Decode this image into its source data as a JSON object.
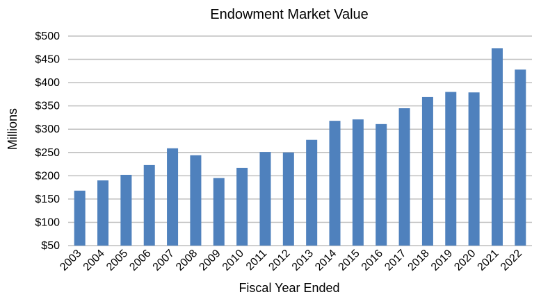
{
  "chart_data": {
    "type": "bar",
    "title": "Endowment Market Value",
    "xlabel": "Fiscal Year Ended",
    "ylabel": "Millions",
    "categories": [
      "2003",
      "2004",
      "2005",
      "2006",
      "2007",
      "2008",
      "2009",
      "2010",
      "2011",
      "2012",
      "2013",
      "2014",
      "2015",
      "2016",
      "2017",
      "2018",
      "2019",
      "2020",
      "2021",
      "2022"
    ],
    "values": [
      168,
      190,
      202,
      223,
      259,
      244,
      195,
      217,
      251,
      250,
      277,
      318,
      321,
      311,
      345,
      369,
      380,
      379,
      474,
      428
    ],
    "ylim": [
      50,
      500
    ],
    "yticks": [
      50,
      100,
      150,
      200,
      250,
      300,
      350,
      400,
      450,
      500
    ],
    "ytick_labels": [
      "$50",
      "$100",
      "$150",
      "$200",
      "$250",
      "$300",
      "$350",
      "$400",
      "$450",
      "$500"
    ],
    "grid": true,
    "legend": "none",
    "bar_color": "#4f81bd"
  }
}
